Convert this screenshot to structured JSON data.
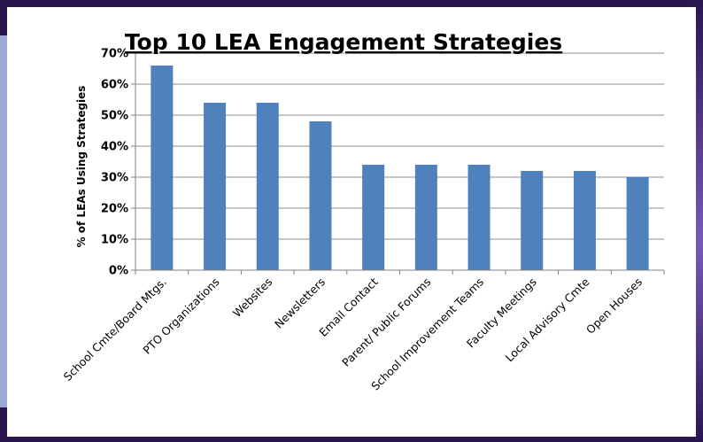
{
  "chart_data": {
    "type": "bar",
    "title": "Top 10 LEA Engagement Strategies",
    "xlabel": "",
    "ylabel": "% of LEAs Using Strategies",
    "categories": [
      "School Cmte/Board Mtgs.",
      "PTO Organizations",
      "Websites",
      "Newsletters",
      "Email Contact",
      "Parent/ Public Forums",
      "School Improvement Teams",
      "Faculty Meetings",
      "Local Advisory Cmte",
      "Open Houses"
    ],
    "values": [
      66,
      54,
      54,
      48,
      34,
      34,
      34,
      32,
      32,
      30
    ],
    "ylim": [
      0,
      70
    ],
    "yticks": [
      0,
      10,
      20,
      30,
      40,
      50,
      60,
      70
    ],
    "ytick_labels": [
      "0%",
      "10%",
      "20%",
      "30%",
      "40%",
      "50%",
      "60%",
      "70%"
    ],
    "grid": true,
    "legend": "none",
    "colors": {
      "bar": "#4f81bd",
      "grid": "#8c8c8c",
      "axis": "#808080"
    }
  }
}
